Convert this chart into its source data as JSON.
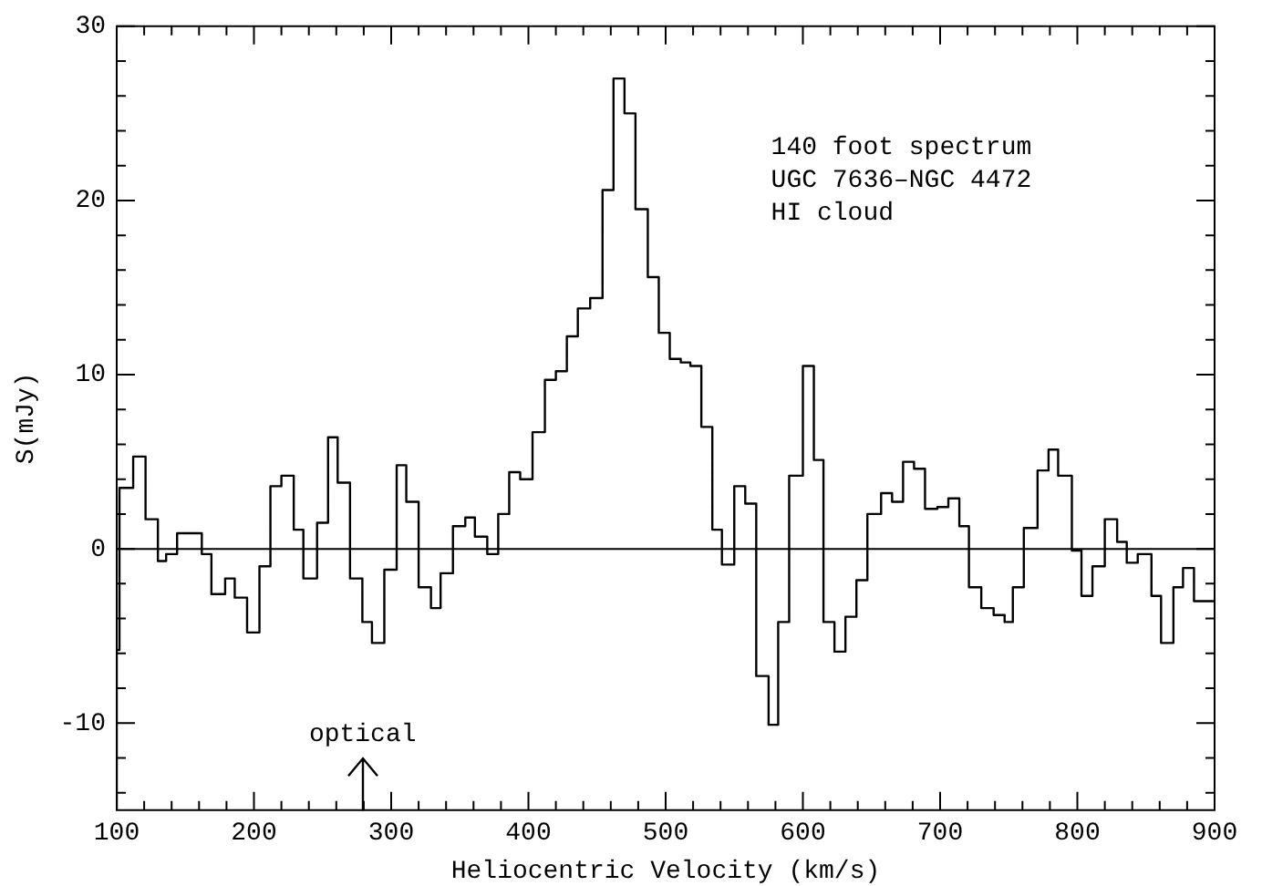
{
  "chart_data": {
    "type": "step",
    "xlabel": "Heliocentric Velocity (km/s)",
    "ylabel": "S(mJy)",
    "xlim": [
      100,
      900
    ],
    "ylim": [
      -15,
      30
    ],
    "xticks": [
      100,
      {
        "value": 120,
        "label": null
      },
      {
        "value": 140,
        "label": null
      },
      {
        "value": 160,
        "label": null
      },
      {
        "value": 180,
        "label": null
      },
      200,
      {
        "value": 220,
        "label": null
      },
      {
        "value": 240,
        "label": null
      },
      {
        "value": 260,
        "label": null
      },
      {
        "value": 280,
        "label": null
      },
      300,
      {
        "value": 320,
        "label": null
      },
      {
        "value": 340,
        "label": null
      },
      {
        "value": 360,
        "label": null
      },
      {
        "value": 380,
        "label": null
      },
      400,
      {
        "value": 420,
        "label": null
      },
      {
        "value": 440,
        "label": null
      },
      {
        "value": 460,
        "label": null
      },
      {
        "value": 480,
        "label": null
      },
      500,
      {
        "value": 520,
        "label": null
      },
      {
        "value": 540,
        "label": null
      },
      {
        "value": 560,
        "label": null
      },
      {
        "value": 580,
        "label": null
      },
      600,
      {
        "value": 620,
        "label": null
      },
      {
        "value": 640,
        "label": null
      },
      {
        "value": 660,
        "label": null
      },
      {
        "value": 680,
        "label": null
      },
      700,
      {
        "value": 720,
        "label": null
      },
      {
        "value": 740,
        "label": null
      },
      {
        "value": 760,
        "label": null
      },
      {
        "value": 780,
        "label": null
      },
      800,
      {
        "value": 820,
        "label": null
      },
      {
        "value": 840,
        "label": null
      },
      {
        "value": 860,
        "label": null
      },
      {
        "value": 880,
        "label": null
      },
      900
    ],
    "yticks": [
      {
        "value": -14,
        "label": null
      },
      {
        "value": -12,
        "label": null
      },
      -10,
      {
        "value": -8,
        "label": null
      },
      {
        "value": -6,
        "label": null
      },
      {
        "value": -4,
        "label": null
      },
      {
        "value": -2,
        "label": null
      },
      0,
      {
        "value": 2,
        "label": null
      },
      {
        "value": 4,
        "label": null
      },
      {
        "value": 6,
        "label": null
      },
      {
        "value": 8,
        "label": null
      },
      10,
      {
        "value": 12,
        "label": null
      },
      {
        "value": 14,
        "label": null
      },
      {
        "value": 16,
        "label": null
      },
      {
        "value": 18,
        "label": null
      },
      20,
      {
        "value": 22,
        "label": null
      },
      {
        "value": 24,
        "label": null
      },
      {
        "value": 26,
        "label": null
      },
      {
        "value": 28,
        "label": null
      },
      30
    ],
    "grid": false,
    "legend": false,
    "marker": "none",
    "line_style": "solid",
    "x": [
      100,
      102,
      112,
      121,
      130,
      136,
      144,
      162,
      169,
      179,
      186,
      195,
      204,
      212,
      220,
      229,
      236,
      246,
      254,
      261,
      270,
      279,
      286,
      295,
      304,
      311,
      320,
      329,
      336,
      345,
      354,
      361,
      370,
      378,
      386,
      394,
      403,
      412,
      420,
      428,
      436,
      445,
      454,
      462,
      470,
      478,
      487,
      495,
      503,
      511,
      518,
      526,
      534,
      541,
      550,
      558,
      566,
      575,
      582,
      590,
      600,
      608,
      615,
      623,
      631,
      639,
      647,
      657,
      665,
      673,
      681,
      689,
      698,
      706,
      714,
      721,
      730,
      739,
      747,
      753,
      761,
      771,
      779,
      786,
      796,
      803,
      811,
      820,
      829,
      836,
      844,
      854,
      861,
      870,
      877,
      885,
      894,
      900
    ],
    "series": [
      {
        "color": "#000000",
        "values": [
          -15,
          -5.8,
          3.5,
          5.3,
          1.7,
          -0.7,
          -0.3,
          0.9,
          -0.3,
          -2.6,
          -1.7,
          -2.8,
          -4.8,
          -1.0,
          3.6,
          4.2,
          1.1,
          -1.7,
          1.5,
          6.4,
          3.8,
          -1.7,
          -4.2,
          -5.4,
          -1.2,
          4.8,
          2.7,
          -2.2,
          -3.4,
          -1.4,
          1.3,
          1.8,
          0.7,
          -0.3,
          2.0,
          4.4,
          4.0,
          6.7,
          9.7,
          10.2,
          12.2,
          13.8,
          14.4,
          20.6,
          27.0,
          25.0,
          19.5,
          15.6,
          12.4,
          10.9,
          10.7,
          10.5,
          7.0,
          1.1,
          -0.9,
          3.6,
          2.6,
          -7.3,
          -10.1,
          -4.2,
          4.2,
          10.5,
          5.1,
          -4.2,
          -5.9,
          -3.9,
          -1.8,
          2.0,
          3.2,
          2.7,
          5.0,
          4.6,
          2.3,
          2.4,
          2.9,
          1.3,
          -2.2,
          -3.4,
          -3.8,
          -4.2,
          -2.2,
          1.2,
          4.5,
          5.7,
          4.2,
          -0.1,
          -2.7,
          -1.0,
          1.7,
          0.4,
          -0.8,
          -0.3,
          -2.7,
          -5.4,
          -2.2,
          -1.1,
          -3.0,
          -3.0
        ]
      }
    ],
    "ref_lines": [
      {
        "axis": "y",
        "value": 0,
        "color": "#000000",
        "line_style": "solid"
      }
    ],
    "annotations": [
      "optical",
      "140 foot spectrum",
      "UGC 7636–NGC 4472",
      "HI cloud"
    ]
  }
}
